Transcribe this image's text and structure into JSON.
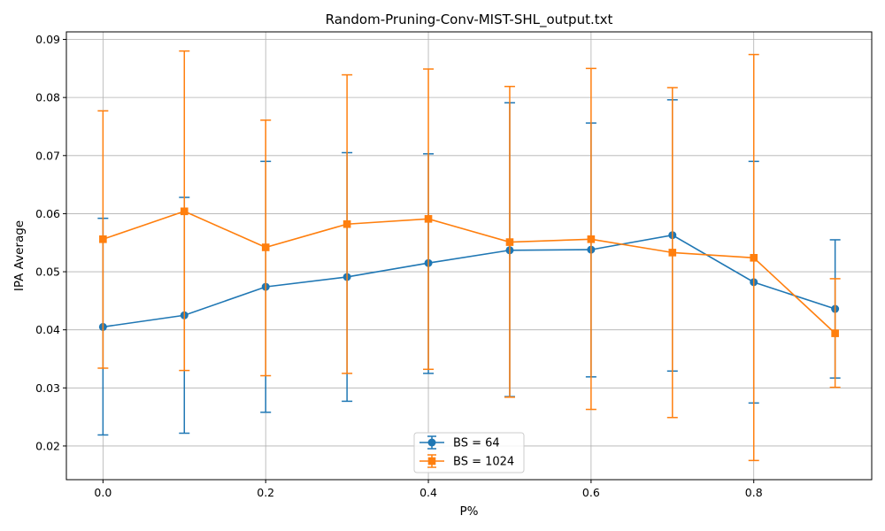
{
  "chart_data": {
    "type": "line",
    "title": "Random-Pruning-Conv-MIST-SHL_output.txt",
    "xlabel": "P%",
    "ylabel": "IPA Average",
    "xlim": [
      -0.045,
      0.945
    ],
    "ylim": [
      0.0142,
      0.0913
    ],
    "xticks": [
      "0.0",
      "0.2",
      "0.4",
      "0.6",
      "0.8"
    ],
    "xtick_values": [
      0.0,
      0.2,
      0.4,
      0.6,
      0.8
    ],
    "yticks": [
      "0.02",
      "0.03",
      "0.04",
      "0.05",
      "0.06",
      "0.07",
      "0.08",
      "0.09"
    ],
    "ytick_values": [
      0.02,
      0.03,
      0.04,
      0.05,
      0.06,
      0.07,
      0.08,
      0.09
    ],
    "grid": true,
    "legend_position": "bottom-center",
    "x": [
      0.0,
      0.1,
      0.2,
      0.3,
      0.4,
      0.5,
      0.6,
      0.7,
      0.8,
      0.9
    ],
    "series": [
      {
        "name": "BS = 64",
        "color": "#1f77b4",
        "marker": "circle",
        "values": [
          0.0405,
          0.0425,
          0.0474,
          0.0491,
          0.0515,
          0.0537,
          0.0538,
          0.0563,
          0.0482,
          0.0436
        ],
        "err_low": [
          0.0219,
          0.0222,
          0.0258,
          0.0277,
          0.0325,
          0.0285,
          0.0319,
          0.0329,
          0.0274,
          0.0317
        ],
        "err_high": [
          0.0592,
          0.0628,
          0.069,
          0.0705,
          0.0703,
          0.0791,
          0.0756,
          0.0796,
          0.069,
          0.0555
        ]
      },
      {
        "name": "BS = 1024",
        "color": "#ff7f0e",
        "marker": "square",
        "values": [
          0.0556,
          0.0604,
          0.0542,
          0.0582,
          0.0591,
          0.0551,
          0.0556,
          0.0533,
          0.0524,
          0.0394
        ],
        "err_low": [
          0.0334,
          0.033,
          0.0321,
          0.0325,
          0.0332,
          0.0284,
          0.0263,
          0.0249,
          0.0175,
          0.0301
        ],
        "err_high": [
          0.0777,
          0.088,
          0.0761,
          0.0839,
          0.0849,
          0.0819,
          0.085,
          0.0817,
          0.0874,
          0.0488
        ]
      }
    ]
  }
}
